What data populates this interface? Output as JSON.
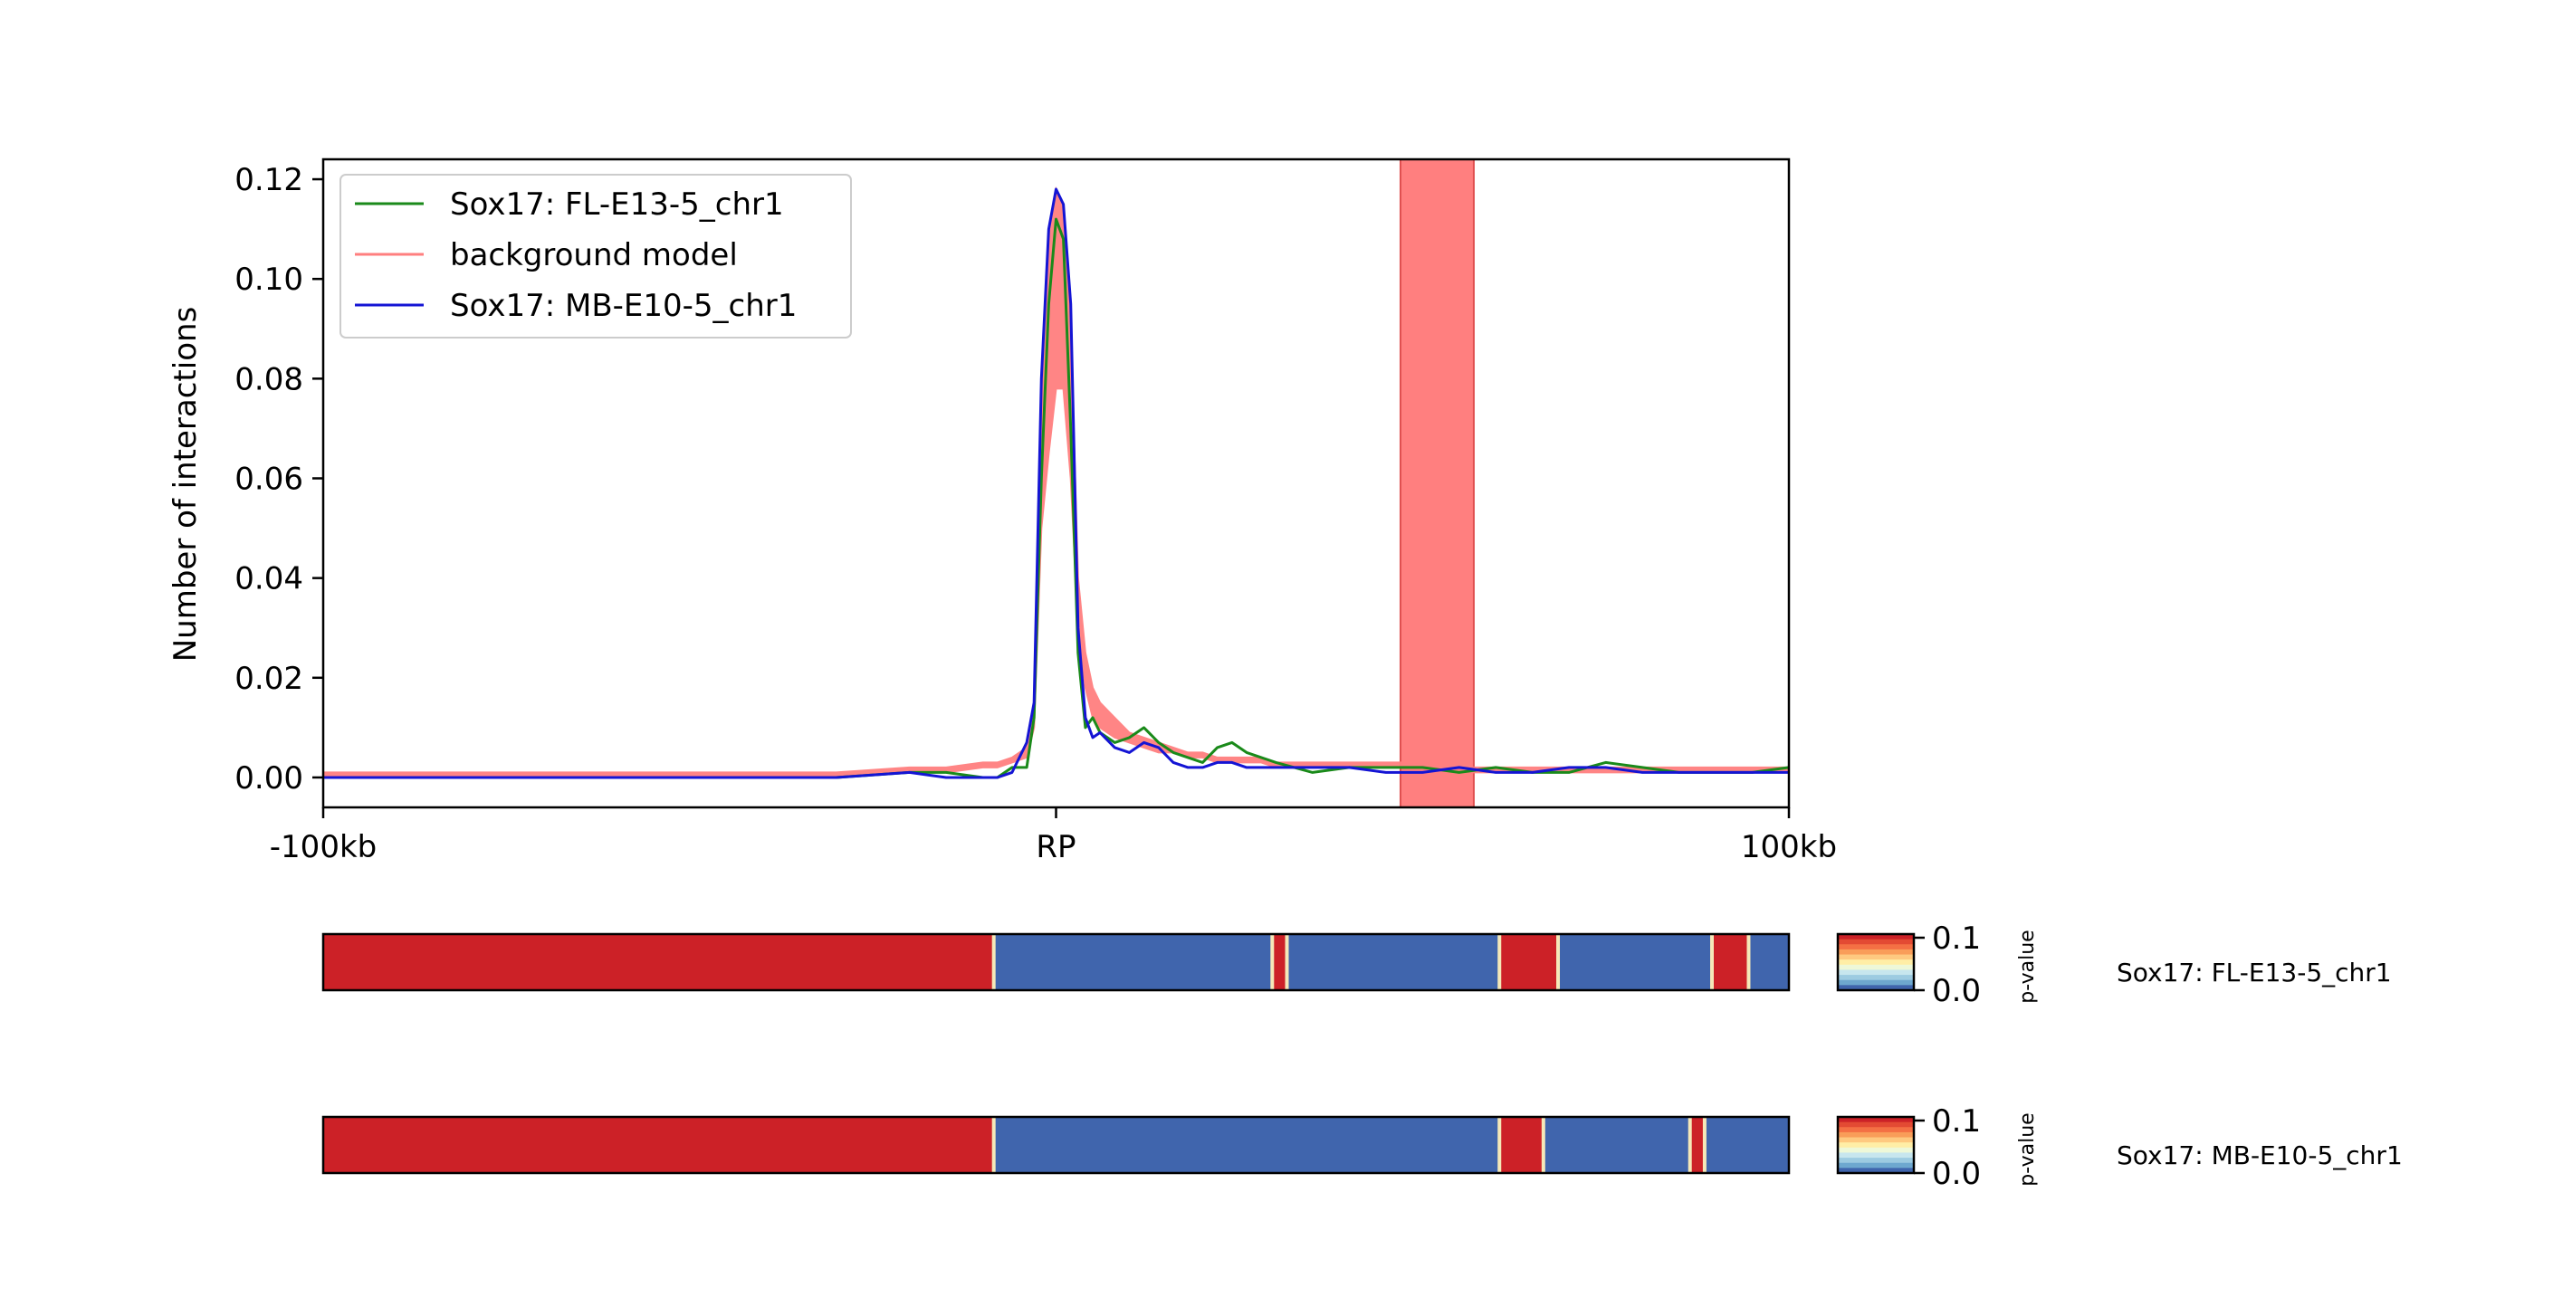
{
  "chart_data": [
    {
      "type": "line",
      "ylabel": "Number of interactions",
      "xlim": [
        -100,
        100
      ],
      "ylim": [
        -0.006,
        0.124
      ],
      "xticks": [
        "-100kb",
        "RP",
        "100kb"
      ],
      "yticks": [
        "0.00",
        "0.02",
        "0.04",
        "0.06",
        "0.08",
        "0.10",
        "0.12"
      ],
      "legend": {
        "placement": "top-left",
        "entries": [
          "Sox17: FL-E13-5_chr1",
          "background model",
          "Sox17: MB-E10-5_chr1"
        ]
      },
      "highlight_region": {
        "x_start": 47,
        "x_end": 57,
        "color": "#ff7f7f"
      },
      "x": [
        -100,
        -80,
        -60,
        -40,
        -30,
        -20,
        -15,
        -10,
        -8,
        -6,
        -4,
        -3,
        -2,
        -1,
        0,
        1,
        2,
        3,
        4,
        5,
        6,
        8,
        10,
        12,
        14,
        16,
        18,
        20,
        22,
        24,
        26,
        28,
        30,
        35,
        40,
        45,
        50,
        55,
        60,
        65,
        70,
        75,
        80,
        85,
        90,
        95,
        100
      ],
      "series": [
        {
          "name": "Sox17: FL-E13-5_chr1",
          "color": "#1a8a1a",
          "values": [
            0,
            0,
            0,
            0,
            0,
            0.001,
            0.001,
            0,
            0,
            0.002,
            0.002,
            0.012,
            0.06,
            0.095,
            0.112,
            0.108,
            0.07,
            0.025,
            0.01,
            0.012,
            0.009,
            0.007,
            0.008,
            0.01,
            0.007,
            0.005,
            0.004,
            0.003,
            0.006,
            0.007,
            0.005,
            0.004,
            0.003,
            0.001,
            0.002,
            0.002,
            0.002,
            0.001,
            0.002,
            0.001,
            0.001,
            0.003,
            0.002,
            0.001,
            0.001,
            0.001,
            0.002
          ]
        },
        {
          "name": "background model",
          "color": "#ff7f7f",
          "lower": [
            0,
            0,
            0,
            0,
            0,
            0.001,
            0.001,
            0.002,
            0.002,
            0.003,
            0.004,
            0.01,
            0.05,
            0.065,
            0.078,
            0.078,
            0.06,
            0.03,
            0.018,
            0.012,
            0.01,
            0.008,
            0.007,
            0.006,
            0.005,
            0.005,
            0.004,
            0.004,
            0.003,
            0.003,
            0.003,
            0.003,
            0.002,
            0.002,
            0.002,
            0.002,
            0.002,
            0.001,
            0.001,
            0.001,
            0.001,
            0.001,
            0.001,
            0.001,
            0.001,
            0.001,
            0.001
          ],
          "upper": [
            0.001,
            0.001,
            0.001,
            0.001,
            0.001,
            0.002,
            0.002,
            0.003,
            0.003,
            0.004,
            0.006,
            0.015,
            0.08,
            0.11,
            0.118,
            0.115,
            0.09,
            0.04,
            0.025,
            0.018,
            0.015,
            0.012,
            0.009,
            0.008,
            0.007,
            0.006,
            0.005,
            0.005,
            0.004,
            0.004,
            0.004,
            0.004,
            0.003,
            0.003,
            0.003,
            0.003,
            0.003,
            0.002,
            0.002,
            0.002,
            0.002,
            0.002,
            0.002,
            0.002,
            0.002,
            0.002,
            0.002
          ]
        },
        {
          "name": "Sox17: MB-E10-5_chr1",
          "color": "#1414d4",
          "values": [
            0,
            0,
            0,
            0,
            0,
            0.001,
            0,
            0,
            0,
            0.001,
            0.007,
            0.015,
            0.08,
            0.11,
            0.118,
            0.115,
            0.095,
            0.03,
            0.012,
            0.008,
            0.009,
            0.006,
            0.005,
            0.007,
            0.006,
            0.003,
            0.002,
            0.002,
            0.003,
            0.003,
            0.002,
            0.002,
            0.002,
            0.002,
            0.002,
            0.001,
            0.001,
            0.002,
            0.001,
            0.001,
            0.002,
            0.002,
            0.001,
            0.001,
            0.001,
            0.001,
            0.001
          ]
        }
      ]
    },
    {
      "type": "heatmap",
      "name": "Sox17: FL-E13-5_chr1",
      "colorbar": {
        "label": "p-value",
        "ticks": [
          "0.1",
          "0.0"
        ]
      },
      "segments": [
        {
          "x_start": -100,
          "x_end": -8.5,
          "color": "#cc2127"
        },
        {
          "x_start": -8.5,
          "x_end": 29.5,
          "color": "#4065ad"
        },
        {
          "x_start": 29.5,
          "x_end": 31.5,
          "color": "#cc2127"
        },
        {
          "x_start": 31.5,
          "x_end": 60.5,
          "color": "#4065ad"
        },
        {
          "x_start": 60.5,
          "x_end": 68.5,
          "color": "#cc2127"
        },
        {
          "x_start": 68.5,
          "x_end": 89.5,
          "color": "#4065ad"
        },
        {
          "x_start": 89.5,
          "x_end": 94.5,
          "color": "#cc2127"
        },
        {
          "x_start": 94.5,
          "x_end": 100,
          "color": "#4065ad"
        }
      ]
    },
    {
      "type": "heatmap",
      "name": "Sox17: MB-E10-5_chr1",
      "colorbar": {
        "label": "p-value",
        "ticks": [
          "0.1",
          "0.0"
        ]
      },
      "segments": [
        {
          "x_start": -100,
          "x_end": -8.5,
          "color": "#cc2127"
        },
        {
          "x_start": -8.5,
          "x_end": 60.5,
          "color": "#4065ad"
        },
        {
          "x_start": 60.5,
          "x_end": 66.5,
          "color": "#cc2127"
        },
        {
          "x_start": 66.5,
          "x_end": 86.5,
          "color": "#4065ad"
        },
        {
          "x_start": 86.5,
          "x_end": 88.5,
          "color": "#cc2127"
        },
        {
          "x_start": 88.5,
          "x_end": 100,
          "color": "#4065ad"
        }
      ]
    }
  ]
}
